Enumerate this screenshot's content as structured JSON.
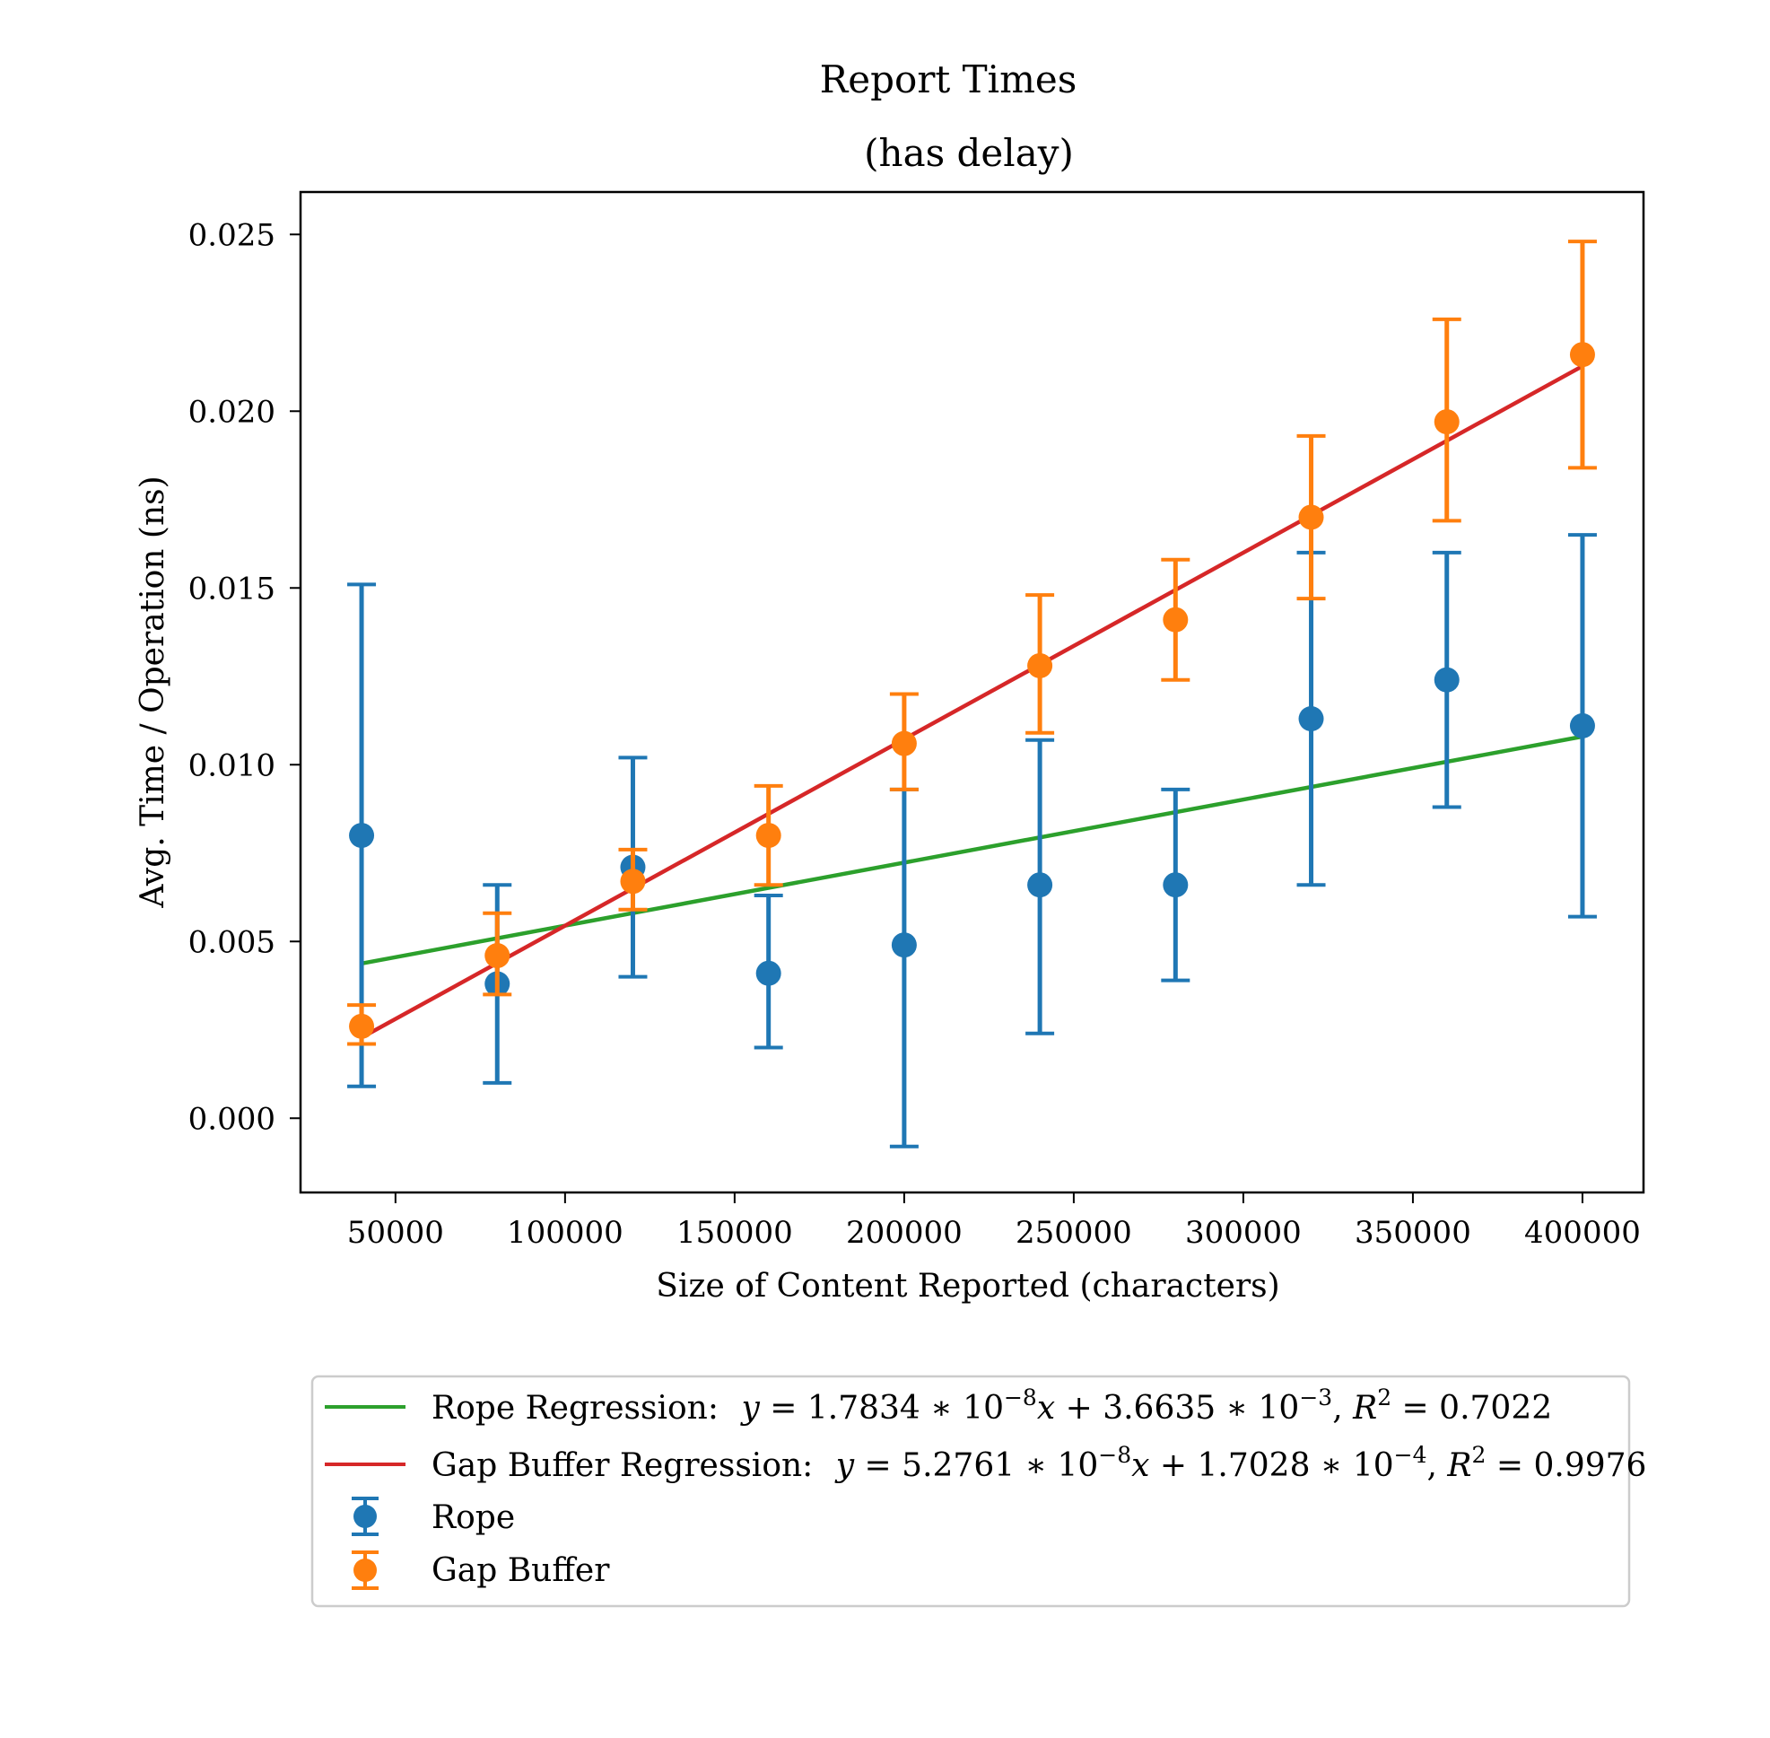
{
  "chart_data": {
    "type": "scatter",
    "title": "Report Times",
    "subtitle": "(has delay)",
    "xlabel": "Size of Content Reported (characters)",
    "ylabel": "Avg. Time / Operation (ns)",
    "xlim": [
      22000,
      418000
    ],
    "ylim": [
      -0.0021,
      0.0262
    ],
    "x_ticks": [
      50000,
      100000,
      150000,
      200000,
      250000,
      300000,
      350000,
      400000
    ],
    "x_tick_labels": [
      "50000",
      "100000",
      "150000",
      "200000",
      "250000",
      "300000",
      "350000",
      "400000"
    ],
    "y_ticks": [
      0.0,
      0.005,
      0.01,
      0.015,
      0.02,
      0.025
    ],
    "y_tick_labels": [
      "0.000",
      "0.005",
      "0.010",
      "0.015",
      "0.020",
      "0.025"
    ],
    "grid": false,
    "legend_position": "below",
    "series": [
      {
        "name": "Rope",
        "kind": "errorbar",
        "color": "#1f77b4",
        "x": [
          40000,
          80000,
          120000,
          160000,
          200000,
          240000,
          280000,
          320000,
          360000,
          400000
        ],
        "y": [
          0.008,
          0.0038,
          0.0071,
          0.0041,
          0.0049,
          0.0066,
          0.0066,
          0.0113,
          0.0124,
          0.0111
        ],
        "yerr_low": [
          0.0009,
          0.001,
          0.004,
          0.002,
          -0.0008,
          0.0024,
          0.0039,
          0.0066,
          0.0088,
          0.0057
        ],
        "yerr_high": [
          0.0151,
          0.0066,
          0.0102,
          0.0063,
          0.0093,
          0.0107,
          0.0093,
          0.016,
          0.016,
          0.0165
        ]
      },
      {
        "name": "Gap Buffer",
        "kind": "errorbar",
        "color": "#ff7f0e",
        "x": [
          40000,
          80000,
          120000,
          160000,
          200000,
          240000,
          280000,
          320000,
          360000,
          400000
        ],
        "y": [
          0.0026,
          0.0046,
          0.0067,
          0.008,
          0.0106,
          0.0128,
          0.0141,
          0.017,
          0.0197,
          0.0216
        ],
        "yerr_low": [
          0.0021,
          0.0035,
          0.0059,
          0.0066,
          0.0093,
          0.0109,
          0.0124,
          0.0147,
          0.0169,
          0.0184
        ],
        "yerr_high": [
          0.0032,
          0.0058,
          0.0076,
          0.0094,
          0.012,
          0.0148,
          0.0158,
          0.0193,
          0.0226,
          0.0248
        ]
      },
      {
        "name": "Rope Regression",
        "kind": "line",
        "color": "#2ca02c",
        "slope": 1.7834e-08,
        "intercept": 0.0036635,
        "x": [
          40000,
          400000
        ],
        "equation_parts": [
          "y",
          " = 1.7834 ∗ 10",
          "−8",
          "x",
          " + 3.6635 ∗ 10",
          "−3",
          ", ",
          "R",
          "2",
          " = 0.7022"
        ]
      },
      {
        "name": "Gap Buffer Regression",
        "kind": "line",
        "color": "#d62728",
        "slope": 5.2761e-08,
        "intercept": 0.00017028,
        "x": [
          40000,
          400000
        ],
        "equation_parts": [
          "y",
          " = 5.2761 ∗ 10",
          "−8",
          "x",
          " + 1.7028 ∗ 10",
          "−4",
          ", ",
          "R",
          "2",
          " = 0.9976"
        ]
      }
    ]
  },
  "legend": {
    "rope_regression_label": "Rope Regression:",
    "gap_regression_label": "Gap Buffer Regression:",
    "rope_label": "Rope",
    "gap_label": "Gap Buffer"
  }
}
